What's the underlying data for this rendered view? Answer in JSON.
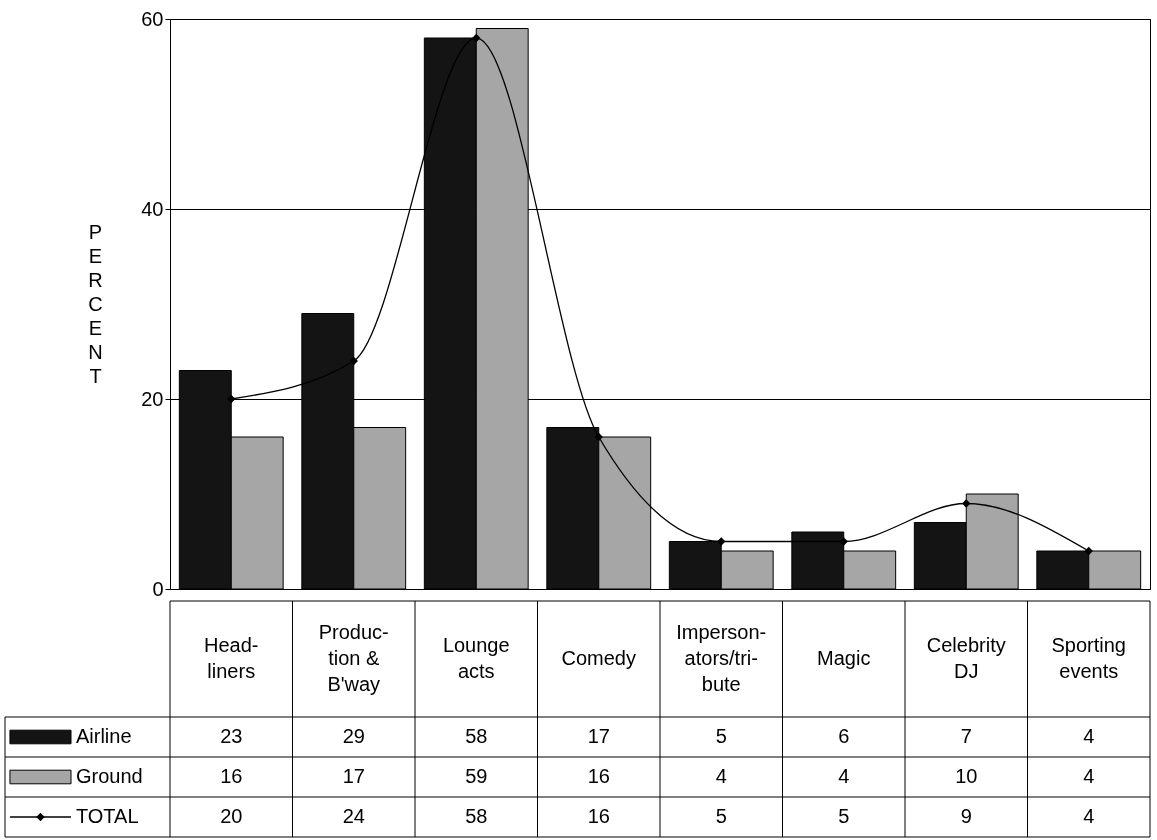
{
  "chart_data": {
    "type": "bar",
    "ylabel": "PERCENT",
    "categories": [
      "Head-\nliners",
      "Produc-\ntion &\nB'way",
      "Lounge\nacts",
      "Comedy",
      "Imperson-\nators/tri-\nbute",
      "Magic",
      "Celebrity\nDJ",
      "Sporting\nevents"
    ],
    "series": [
      {
        "name": "Airline",
        "color": "#141414",
        "values": [
          23,
          29,
          58,
          17,
          5,
          6,
          7,
          4
        ]
      },
      {
        "name": "Ground",
        "color": "#a6a6a6",
        "values": [
          16,
          17,
          59,
          16,
          4,
          4,
          10,
          4
        ]
      },
      {
        "name": "TOTAL",
        "type": "line",
        "color": "#000000",
        "marker": "diamond",
        "line_style": "solid",
        "values": [
          20,
          24,
          58,
          16,
          5,
          5,
          9,
          4
        ]
      }
    ],
    "ylim": [
      0,
      60
    ],
    "yticks": [
      0,
      20,
      40,
      60
    ],
    "grid": "y",
    "legend": "bottom left",
    "data_labels": true
  }
}
